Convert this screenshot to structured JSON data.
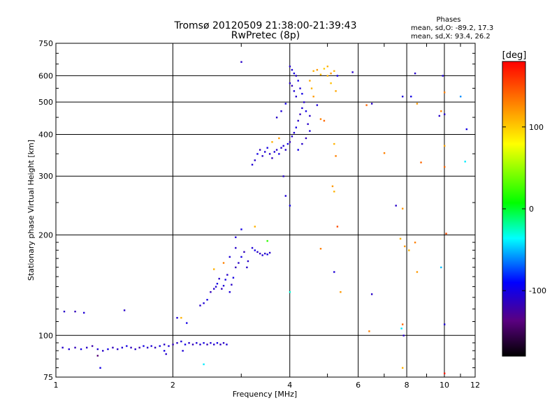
{
  "chart_data": {
    "type": "scatter",
    "title": "Tromsø 20120509 21:38:00-21:39:43",
    "subtitle": "RwPretec (8p)",
    "xlabel": "Frequency [MHz]",
    "ylabel": "Stationary phase Virtual Height [km]",
    "x_scale": "log",
    "y_scale": "log",
    "xlim": [
      1,
      12
    ],
    "ylim": [
      75,
      750
    ],
    "grid": true,
    "x_ticks": [
      1,
      2,
      4,
      6,
      8,
      10,
      12
    ],
    "y_ticks": [
      75,
      100,
      200,
      300,
      400,
      500,
      600,
      750
    ],
    "x_tick_labels": [
      "1",
      "2",
      "4",
      "6",
      "8",
      "10",
      "12"
    ],
    "y_tick_labels": [
      "75",
      "100",
      "200",
      "300",
      "400",
      "500",
      "600",
      "750"
    ],
    "phase_stats": {
      "heading": "Phases",
      "line1": "mean, sd,O: -89.2, 17.3",
      "line2": "mean, sd,X:  93.4, 26.2"
    },
    "colorbar": {
      "label": "[deg]",
      "range": [
        -180,
        180
      ],
      "ticks": [
        100,
        0,
        -100
      ],
      "tick_labels": [
        "100",
        "0",
        "-100"
      ]
    },
    "series": [
      {
        "values": [
          {
            "x": 1.04,
            "y": 92,
            "c": -110
          },
          {
            "x": 1.08,
            "y": 91,
            "c": -105
          },
          {
            "x": 1.12,
            "y": 92,
            "c": -115
          },
          {
            "x": 1.16,
            "y": 91,
            "c": -100
          },
          {
            "x": 1.2,
            "y": 92,
            "c": -110
          },
          {
            "x": 1.24,
            "y": 93,
            "c": -120
          },
          {
            "x": 1.28,
            "y": 91,
            "c": -105
          },
          {
            "x": 1.32,
            "y": 90,
            "c": -110
          },
          {
            "x": 1.36,
            "y": 91,
            "c": -100
          },
          {
            "x": 1.4,
            "y": 92,
            "c": -115
          },
          {
            "x": 1.44,
            "y": 91,
            "c": -110
          },
          {
            "x": 1.48,
            "y": 92,
            "c": -105
          },
          {
            "x": 1.52,
            "y": 93,
            "c": -100
          },
          {
            "x": 1.56,
            "y": 92,
            "c": -115
          },
          {
            "x": 1.6,
            "y": 91,
            "c": -110
          },
          {
            "x": 1.64,
            "y": 92,
            "c": -120
          },
          {
            "x": 1.68,
            "y": 93,
            "c": -100
          },
          {
            "x": 1.72,
            "y": 92,
            "c": -110
          },
          {
            "x": 1.76,
            "y": 93,
            "c": -105
          },
          {
            "x": 1.8,
            "y": 92,
            "c": -115
          },
          {
            "x": 1.85,
            "y": 93,
            "c": -100
          },
          {
            "x": 1.9,
            "y": 94,
            "c": -110
          },
          {
            "x": 1.95,
            "y": 93,
            "c": -105
          },
          {
            "x": 2.0,
            "y": 94,
            "c": -115
          },
          {
            "x": 2.05,
            "y": 95,
            "c": -110
          },
          {
            "x": 2.1,
            "y": 96,
            "c": -105
          },
          {
            "x": 2.15,
            "y": 94,
            "c": -100
          },
          {
            "x": 2.2,
            "y": 95,
            "c": -110
          },
          {
            "x": 2.25,
            "y": 94,
            "c": -115
          },
          {
            "x": 2.3,
            "y": 95,
            "c": -105
          },
          {
            "x": 2.35,
            "y": 94,
            "c": -110
          },
          {
            "x": 2.4,
            "y": 95,
            "c": -100
          },
          {
            "x": 2.45,
            "y": 94,
            "c": -115
          },
          {
            "x": 2.5,
            "y": 95,
            "c": -105
          },
          {
            "x": 2.55,
            "y": 94,
            "c": -110
          },
          {
            "x": 2.6,
            "y": 95,
            "c": -100
          },
          {
            "x": 2.65,
            "y": 94,
            "c": -115
          },
          {
            "x": 2.7,
            "y": 95,
            "c": -110
          },
          {
            "x": 2.75,
            "y": 94,
            "c": -105
          },
          {
            "x": 1.05,
            "y": 118,
            "c": -110
          },
          {
            "x": 1.12,
            "y": 118,
            "c": -115
          },
          {
            "x": 1.18,
            "y": 117,
            "c": -105
          },
          {
            "x": 1.5,
            "y": 119,
            "c": -110
          },
          {
            "x": 1.9,
            "y": 90,
            "c": -100
          },
          {
            "x": 1.92,
            "y": 88,
            "c": -110
          },
          {
            "x": 2.12,
            "y": 90,
            "c": -105
          },
          {
            "x": 2.4,
            "y": 82,
            "c": -40
          },
          {
            "x": 1.3,
            "y": 80,
            "c": -100
          },
          {
            "x": 1.28,
            "y": 87,
            "c": -140
          },
          {
            "x": 2.05,
            "y": 113,
            "c": -105
          },
          {
            "x": 2.1,
            "y": 113,
            "c": 110
          },
          {
            "x": 2.17,
            "y": 109,
            "c": -100
          },
          {
            "x": 2.35,
            "y": 123,
            "c": -110
          },
          {
            "x": 2.4,
            "y": 125,
            "c": -105
          },
          {
            "x": 2.45,
            "y": 128,
            "c": -100
          },
          {
            "x": 2.5,
            "y": 135,
            "c": -115
          },
          {
            "x": 2.55,
            "y": 138,
            "c": -110
          },
          {
            "x": 2.58,
            "y": 140,
            "c": -105
          },
          {
            "x": 2.6,
            "y": 143,
            "c": -100
          },
          {
            "x": 2.63,
            "y": 148,
            "c": -110
          },
          {
            "x": 2.67,
            "y": 138,
            "c": -115
          },
          {
            "x": 2.7,
            "y": 141,
            "c": -105
          },
          {
            "x": 2.73,
            "y": 147,
            "c": -100
          },
          {
            "x": 2.76,
            "y": 152,
            "c": -110
          },
          {
            "x": 2.8,
            "y": 135,
            "c": -105
          },
          {
            "x": 2.83,
            "y": 142,
            "c": -110
          },
          {
            "x": 2.86,
            "y": 149,
            "c": -100
          },
          {
            "x": 2.9,
            "y": 160,
            "c": -115
          },
          {
            "x": 2.95,
            "y": 165,
            "c": -110
          },
          {
            "x": 2.55,
            "y": 158,
            "c": 110
          },
          {
            "x": 2.7,
            "y": 165,
            "c": 130
          },
          {
            "x": 2.8,
            "y": 172,
            "c": -105
          },
          {
            "x": 2.9,
            "y": 183,
            "c": -110
          },
          {
            "x": 3.0,
            "y": 172,
            "c": -100
          },
          {
            "x": 3.05,
            "y": 178,
            "c": -115
          },
          {
            "x": 3.12,
            "y": 167,
            "c": -110
          },
          {
            "x": 3.2,
            "y": 183,
            "c": -105
          },
          {
            "x": 3.25,
            "y": 180,
            "c": -100
          },
          {
            "x": 3.3,
            "y": 178,
            "c": -110
          },
          {
            "x": 3.35,
            "y": 176,
            "c": -115
          },
          {
            "x": 3.4,
            "y": 174,
            "c": -105
          },
          {
            "x": 3.45,
            "y": 176,
            "c": -110
          },
          {
            "x": 3.5,
            "y": 175,
            "c": -100
          },
          {
            "x": 3.55,
            "y": 177,
            "c": -110
          },
          {
            "x": 3.0,
            "y": 208,
            "c": -100
          },
          {
            "x": 2.9,
            "y": 197,
            "c": -105
          },
          {
            "x": 3.1,
            "y": 160,
            "c": -110
          },
          {
            "x": 3.25,
            "y": 212,
            "c": 110
          },
          {
            "x": 3.5,
            "y": 192,
            "c": 20
          },
          {
            "x": 3.2,
            "y": 325,
            "c": -105
          },
          {
            "x": 3.25,
            "y": 335,
            "c": -110
          },
          {
            "x": 3.3,
            "y": 350,
            "c": -100
          },
          {
            "x": 3.35,
            "y": 360,
            "c": -115
          },
          {
            "x": 3.4,
            "y": 345,
            "c": -110
          },
          {
            "x": 3.45,
            "y": 355,
            "c": -105
          },
          {
            "x": 3.5,
            "y": 365,
            "c": -100
          },
          {
            "x": 3.55,
            "y": 350,
            "c": -110
          },
          {
            "x": 3.6,
            "y": 340,
            "c": -115
          },
          {
            "x": 3.65,
            "y": 355,
            "c": -105
          },
          {
            "x": 3.7,
            "y": 360,
            "c": -110
          },
          {
            "x": 3.75,
            "y": 350,
            "c": -100
          },
          {
            "x": 3.8,
            "y": 365,
            "c": -110
          },
          {
            "x": 3.85,
            "y": 370,
            "c": -105
          },
          {
            "x": 3.9,
            "y": 360,
            "c": -110
          },
          {
            "x": 3.95,
            "y": 375,
            "c": -100
          },
          {
            "x": 4.0,
            "y": 380,
            "c": -115
          },
          {
            "x": 4.05,
            "y": 395,
            "c": -110
          },
          {
            "x": 4.1,
            "y": 405,
            "c": -105
          },
          {
            "x": 4.15,
            "y": 420,
            "c": -100
          },
          {
            "x": 4.2,
            "y": 440,
            "c": -110
          },
          {
            "x": 4.25,
            "y": 460,
            "c": -115
          },
          {
            "x": 4.3,
            "y": 480,
            "c": -105
          },
          {
            "x": 4.35,
            "y": 500,
            "c": -110
          },
          {
            "x": 4.4,
            "y": 470,
            "c": -100
          },
          {
            "x": 4.45,
            "y": 430,
            "c": -110
          },
          {
            "x": 4.5,
            "y": 410,
            "c": -105
          },
          {
            "x": 4.2,
            "y": 360,
            "c": -100
          },
          {
            "x": 4.3,
            "y": 375,
            "c": -110
          },
          {
            "x": 4.4,
            "y": 390,
            "c": -115
          },
          {
            "x": 4.5,
            "y": 455,
            "c": -110
          },
          {
            "x": 3.6,
            "y": 380,
            "c": 110
          },
          {
            "x": 3.75,
            "y": 390,
            "c": 120
          },
          {
            "x": 3.7,
            "y": 450,
            "c": -110
          },
          {
            "x": 3.8,
            "y": 470,
            "c": -105
          },
          {
            "x": 3.9,
            "y": 495,
            "c": -100
          },
          {
            "x": 3.85,
            "y": 300,
            "c": -110
          },
          {
            "x": 3.9,
            "y": 262,
            "c": -105
          },
          {
            "x": 4.0,
            "y": 245,
            "c": -100
          },
          {
            "x": 4.0,
            "y": 640,
            "c": -110
          },
          {
            "x": 4.05,
            "y": 625,
            "c": -105
          },
          {
            "x": 4.1,
            "y": 610,
            "c": -100
          },
          {
            "x": 4.15,
            "y": 600,
            "c": -110
          },
          {
            "x": 4.05,
            "y": 560,
            "c": -115
          },
          {
            "x": 4.1,
            "y": 540,
            "c": -105
          },
          {
            "x": 4.15,
            "y": 520,
            "c": -110
          },
          {
            "x": 4.2,
            "y": 580,
            "c": -100
          },
          {
            "x": 4.0,
            "y": 570,
            "c": -110
          },
          {
            "x": 4.25,
            "y": 550,
            "c": -105
          },
          {
            "x": 4.3,
            "y": 530,
            "c": -100
          },
          {
            "x": 4.6,
            "y": 620,
            "c": 110
          },
          {
            "x": 4.7,
            "y": 625,
            "c": 120
          },
          {
            "x": 4.8,
            "y": 605,
            "c": 110
          },
          {
            "x": 4.9,
            "y": 630,
            "c": 100
          },
          {
            "x": 5.0,
            "y": 640,
            "c": 110
          },
          {
            "x": 5.1,
            "y": 610,
            "c": 120
          },
          {
            "x": 5.2,
            "y": 620,
            "c": 110
          },
          {
            "x": 5.3,
            "y": 600,
            "c": -100
          },
          {
            "x": 4.5,
            "y": 580,
            "c": 115
          },
          {
            "x": 4.55,
            "y": 550,
            "c": 110
          },
          {
            "x": 4.6,
            "y": 520,
            "c": 120
          },
          {
            "x": 4.7,
            "y": 490,
            "c": -105
          },
          {
            "x": 4.8,
            "y": 445,
            "c": 130
          },
          {
            "x": 4.9,
            "y": 440,
            "c": 140
          },
          {
            "x": 5.0,
            "y": 600,
            "c": 110
          },
          {
            "x": 5.1,
            "y": 570,
            "c": 105
          },
          {
            "x": 5.25,
            "y": 540,
            "c": 115
          },
          {
            "x": 5.2,
            "y": 375,
            "c": 110
          },
          {
            "x": 5.25,
            "y": 345,
            "c": 130
          },
          {
            "x": 5.15,
            "y": 280,
            "c": 120
          },
          {
            "x": 5.2,
            "y": 270,
            "c": 110
          },
          {
            "x": 5.3,
            "y": 212,
            "c": 150
          },
          {
            "x": 4.8,
            "y": 182,
            "c": 130
          },
          {
            "x": 5.2,
            "y": 155,
            "c": -105
          },
          {
            "x": 5.4,
            "y": 135,
            "c": 120
          },
          {
            "x": 4.0,
            "y": 135,
            "c": -30
          },
          {
            "x": 5.8,
            "y": 615,
            "c": -110
          },
          {
            "x": 6.3,
            "y": 490,
            "c": 140
          },
          {
            "x": 6.5,
            "y": 495,
            "c": -110
          },
          {
            "x": 7.0,
            "y": 352,
            "c": 130
          },
          {
            "x": 7.5,
            "y": 245,
            "c": -110
          },
          {
            "x": 7.8,
            "y": 520,
            "c": -105
          },
          {
            "x": 8.2,
            "y": 520,
            "c": -100
          },
          {
            "x": 8.4,
            "y": 610,
            "c": -110
          },
          {
            "x": 8.7,
            "y": 330,
            "c": 140
          },
          {
            "x": 8.5,
            "y": 495,
            "c": 120
          },
          {
            "x": 7.8,
            "y": 240,
            "c": 120
          },
          {
            "x": 7.7,
            "y": 195,
            "c": 110
          },
          {
            "x": 7.9,
            "y": 185,
            "c": 120
          },
          {
            "x": 8.4,
            "y": 190,
            "c": 130
          },
          {
            "x": 8.1,
            "y": 180,
            "c": 110
          },
          {
            "x": 8.5,
            "y": 155,
            "c": 120
          },
          {
            "x": 7.8,
            "y": 108,
            "c": 140
          },
          {
            "x": 7.75,
            "y": 105,
            "c": -40
          },
          {
            "x": 7.85,
            "y": 100,
            "c": -110
          },
          {
            "x": 7.8,
            "y": 80,
            "c": 110
          },
          {
            "x": 6.4,
            "y": 103,
            "c": 130
          },
          {
            "x": 6.5,
            "y": 133,
            "c": -110
          },
          {
            "x": 9.7,
            "y": 455,
            "c": -110
          },
          {
            "x": 9.8,
            "y": 470,
            "c": 130
          },
          {
            "x": 9.9,
            "y": 600,
            "c": -105
          },
          {
            "x": 10.0,
            "y": 535,
            "c": 130
          },
          {
            "x": 10.0,
            "y": 460,
            "c": -110
          },
          {
            "x": 10.0,
            "y": 370,
            "c": 115
          },
          {
            "x": 10.0,
            "y": 320,
            "c": 140
          },
          {
            "x": 10.1,
            "y": 202,
            "c": 150
          },
          {
            "x": 9.8,
            "y": 160,
            "c": -50
          },
          {
            "x": 10.0,
            "y": 108,
            "c": -105
          },
          {
            "x": 10.0,
            "y": 77,
            "c": 170
          },
          {
            "x": 11.0,
            "y": 520,
            "c": -60
          },
          {
            "x": 11.4,
            "y": 415,
            "c": -100
          },
          {
            "x": 11.3,
            "y": 332,
            "c": -40
          },
          {
            "x": 3.0,
            "y": 660,
            "c": -110
          }
        ]
      }
    ]
  }
}
